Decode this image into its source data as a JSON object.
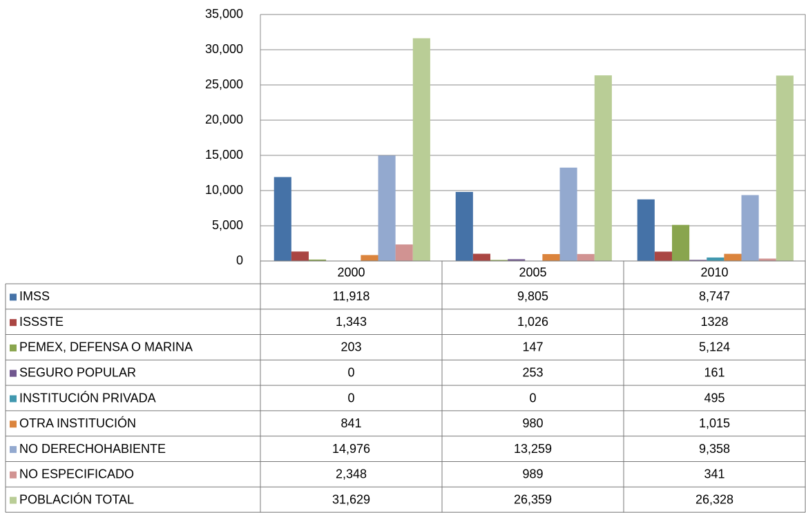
{
  "chart_data": {
    "type": "bar",
    "categories": [
      "2000",
      "2005",
      "2010"
    ],
    "series": [
      {
        "name": "IMSS",
        "color": "#4572a7",
        "values": [
          11918,
          9805,
          8747
        ],
        "value_labels": [
          "11,918",
          "9,805",
          "8,747"
        ]
      },
      {
        "name": "ISSSTE",
        "color": "#aa4643",
        "values": [
          1343,
          1026,
          1328
        ],
        "value_labels": [
          "1,343",
          "1,026",
          "1328"
        ]
      },
      {
        "name": "PEMEX, DEFENSA O MARINA",
        "color": "#89a54e",
        "values": [
          203,
          147,
          5124
        ],
        "value_labels": [
          "203",
          "147",
          "5,124"
        ]
      },
      {
        "name": "SEGURO POPULAR",
        "color": "#71588f",
        "values": [
          0,
          253,
          161
        ],
        "value_labels": [
          "0",
          "253",
          "161"
        ]
      },
      {
        "name": "INSTITUCIÓN PRIVADA",
        "color": "#4198af",
        "values": [
          0,
          0,
          495
        ],
        "value_labels": [
          "0",
          "0",
          "495"
        ]
      },
      {
        "name": "OTRA INSTITUCIÓN",
        "color": "#db843d",
        "values": [
          841,
          980,
          1015
        ],
        "value_labels": [
          "841",
          "980",
          "1,015"
        ]
      },
      {
        "name": "NO DERECHOHABIENTE",
        "color": "#93a9cf",
        "values": [
          14976,
          13259,
          9358
        ],
        "value_labels": [
          "14,976",
          "13,259",
          "9,358"
        ]
      },
      {
        "name": "NO ESPECIFICADO",
        "color": "#d19392",
        "values": [
          2348,
          989,
          341
        ],
        "value_labels": [
          "2,348",
          "989",
          "341"
        ]
      },
      {
        "name": "POBLACIÓN TOTAL",
        "color": "#b9cd96",
        "values": [
          31629,
          26359,
          26328
        ],
        "value_labels": [
          "31,629",
          "26,359",
          "26,328"
        ]
      }
    ],
    "ylim": [
      0,
      35000
    ],
    "yticks": [
      0,
      {
        "value": 5000,
        "label": "5,000"
      },
      {
        "value": 10000,
        "label": "10,000"
      },
      {
        "value": 15000,
        "label": "15,000"
      },
      {
        "value": 20000,
        "label": "20,000"
      },
      {
        "value": 25000,
        "label": "25,000"
      },
      {
        "value": 30000,
        "label": "30,000"
      },
      {
        "value": 35000,
        "label": "35,000"
      }
    ],
    "grid": true
  }
}
